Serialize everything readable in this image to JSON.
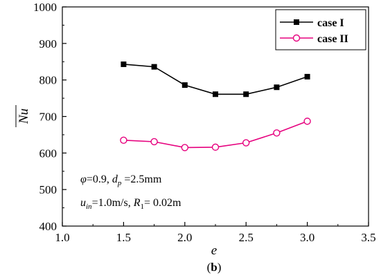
{
  "chart_data": {
    "type": "line",
    "xlabel": "e",
    "ylabel": "Nu",
    "ylabel_overline": true,
    "xlim": [
      1.0,
      3.5
    ],
    "ylim": [
      400,
      1000
    ],
    "xticks": [
      "1.0",
      "1.5",
      "2.0",
      "2.5",
      "3.0",
      "3.5"
    ],
    "yticks": [
      "400",
      "500",
      "600",
      "700",
      "800",
      "900",
      "1000"
    ],
    "grid": false,
    "legend_position": "top-right",
    "series": [
      {
        "name": "case I",
        "color": "#000000",
        "marker": "filled-square",
        "x": [
          1.5,
          1.75,
          2.0,
          2.25,
          2.5,
          2.75,
          3.0
        ],
        "y": [
          843,
          836,
          786,
          761,
          761,
          780,
          809
        ]
      },
      {
        "name": "case II",
        "color": "#e6007e",
        "marker": "open-circle",
        "x": [
          1.5,
          1.75,
          2.0,
          2.25,
          2.5,
          2.75,
          3.0
        ],
        "y": [
          635,
          631,
          615,
          616,
          628,
          655,
          687
        ]
      }
    ],
    "annotations": {
      "line1": {
        "phi": "φ",
        "phi_val": "=0.9, ",
        "d": "d",
        "d_sub": "p",
        "d_val": " =2.5mm"
      },
      "line2": {
        "u": "u",
        "u_sub": "in",
        "u_val": "=1.0m/s, ",
        "r": "R",
        "r_sub": "1",
        "r_val": "= 0.02m"
      }
    },
    "caption": {
      "open": "(",
      "letter": "b",
      "close": ")"
    }
  }
}
